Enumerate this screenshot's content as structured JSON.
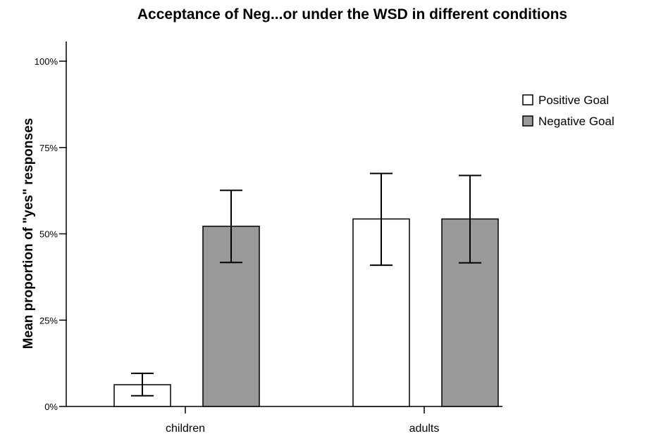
{
  "chart_data": {
    "type": "bar",
    "title": "Acceptance of Neg...or under the WSD in different conditions",
    "ylabel": "Mean proportion of \"yes\" responses",
    "xlabel": "",
    "ylim": [
      0,
      1
    ],
    "yticks": [
      {
        "value": 0,
        "label": "0%"
      },
      {
        "value": 0.25,
        "label": "25%"
      },
      {
        "value": 0.5,
        "label": "50%"
      },
      {
        "value": 0.75,
        "label": "75%"
      },
      {
        "value": 1.0,
        "label": "100%"
      }
    ],
    "categories": [
      "children",
      "adults"
    ],
    "series": [
      {
        "name": "Positive Goal",
        "color": "#ffffff",
        "values": [
          0.063,
          0.543
        ],
        "err_low": [
          0.031,
          0.409
        ],
        "err_high": [
          0.096,
          0.675
        ]
      },
      {
        "name": "Negative Goal",
        "color": "#999999",
        "values": [
          0.522,
          0.543
        ],
        "err_low": [
          0.417,
          0.416
        ],
        "err_high": [
          0.626,
          0.669
        ]
      }
    ],
    "legend_position": "top-right",
    "grid": false
  }
}
